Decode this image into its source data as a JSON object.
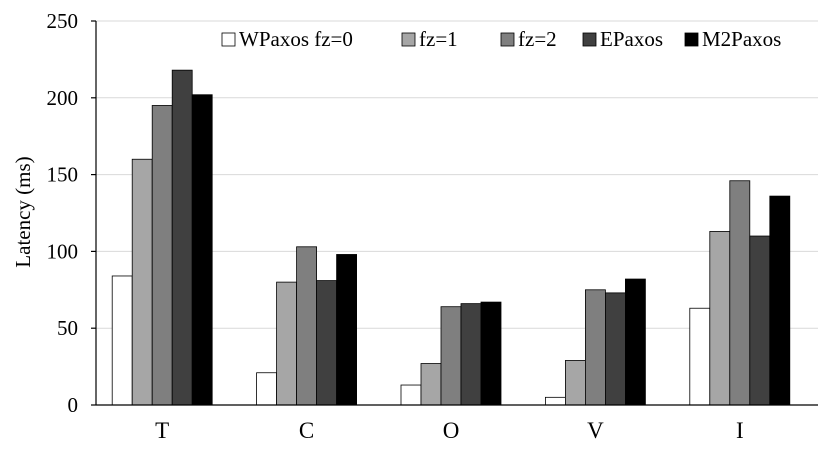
{
  "chart_data": {
    "type": "bar",
    "title": "",
    "xlabel": "",
    "ylabel": "Latency (ms)",
    "ylim": [
      0,
      250
    ],
    "yticks": [
      0,
      50,
      100,
      150,
      200,
      250
    ],
    "grid": true,
    "legend_position": "top-right",
    "categories": [
      "T",
      "C",
      "O",
      "V",
      "I"
    ],
    "series": [
      {
        "name": "WPaxos fz=0",
        "color": "#ffffff",
        "values": [
          84,
          21,
          13,
          5,
          63
        ]
      },
      {
        "name": "fz=1",
        "color": "#a6a6a6",
        "values": [
          160,
          80,
          27,
          29,
          113
        ]
      },
      {
        "name": "fz=2",
        "color": "#7f7f7f",
        "values": [
          195,
          103,
          64,
          75,
          146
        ]
      },
      {
        "name": "EPaxos",
        "color": "#404040",
        "values": [
          218,
          81,
          66,
          73,
          110
        ]
      },
      {
        "name": "M2Paxos",
        "color": "#000000",
        "values": [
          202,
          98,
          67,
          82,
          136
        ]
      }
    ]
  }
}
